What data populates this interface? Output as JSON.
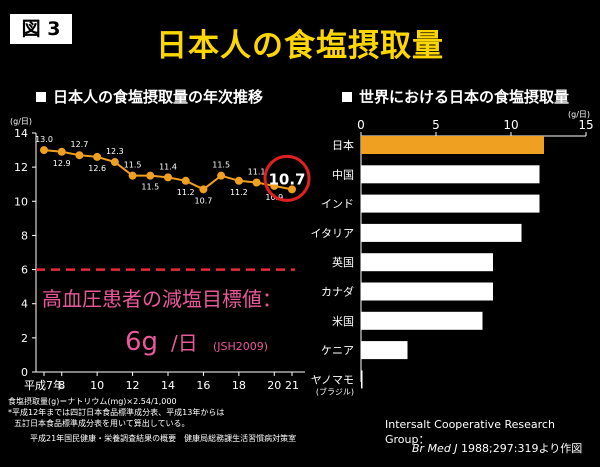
{
  "figure_label": "図 3",
  "main_title": "日本人の食塩摂取量",
  "chart_data": [
    {
      "type": "line",
      "title": "日本人の食塩摂取量の年次推移",
      "ylabel": "(g/日)",
      "ylim": [
        0,
        14
      ],
      "yticks": [
        0,
        2,
        4,
        6,
        8,
        10,
        12,
        14
      ],
      "x_tick_labels": [
        "平成7年",
        "8",
        "10",
        "12",
        "14",
        "16",
        "18",
        "20",
        "21"
      ],
      "series": [
        {
          "x": [
            7,
            8,
            9,
            10,
            11,
            12,
            13,
            14,
            15,
            16,
            17,
            18,
            19,
            20,
            21
          ],
          "values": [
            13.0,
            12.9,
            12.7,
            12.6,
            12.3,
            11.5,
            11.5,
            11.4,
            11.2,
            10.7,
            11.5,
            11.2,
            11.1,
            10.9,
            10.7
          ],
          "labels": [
            "13.0",
            "12.9",
            "12.7",
            "12.6",
            "12.3",
            "11.5",
            "11.5",
            "11.4",
            "11.2",
            "10.7",
            "11.5",
            "11.2",
            "11.1",
            "10.9",
            "10.7"
          ],
          "color": "#f0a020"
        }
      ],
      "reference_line": {
        "value": 6,
        "color": "#e8283c"
      },
      "annotation": {
        "text1": "高血圧患者の減塩目標値：",
        "value": "6g",
        "unit": "/日",
        "source": "(JSH2009)",
        "color": "#e8589a"
      },
      "highlight_label": "10.7",
      "highlight_color": "#e02020"
    },
    {
      "type": "bar",
      "orientation": "horizontal",
      "title": "世界における日本の食塩摂取量",
      "xlabel": "(g/日)",
      "xlim": [
        0,
        15
      ],
      "xticks": [
        0,
        5,
        10,
        15
      ],
      "categories": [
        "日本",
        "中国",
        "インド",
        "イタリア",
        "英国",
        "カナダ",
        "米国",
        "ケニア",
        "ヤノマモ"
      ],
      "category_note": "(ブラジル)",
      "values": [
        12.2,
        11.9,
        11.9,
        10.7,
        8.8,
        8.8,
        8.1,
        3.1,
        0.1
      ],
      "bar_colors": [
        "#f0a020",
        "#ffffff",
        "#ffffff",
        "#ffffff",
        "#ffffff",
        "#ffffff",
        "#ffffff",
        "#ffffff",
        "#ffffff"
      ]
    }
  ],
  "notes": {
    "line1": "食塩摂取量(g)＝ナトリウム(mg)×2.54/1,000",
    "line2": "*平成12年までは四訂日本食品標準成分表、平成13年からは",
    "line3": "五訂日本食品標準成分表を用いて算出している。",
    "line4": "平成21年国民健康・栄養調査結果の概要　健康局総務課生活習慣病対策室"
  },
  "source_right": {
    "line1": "Intersalt Cooperative Research Group：",
    "journal": "Br Med J",
    "line2_rest": " 1988;297:319より作図"
  }
}
